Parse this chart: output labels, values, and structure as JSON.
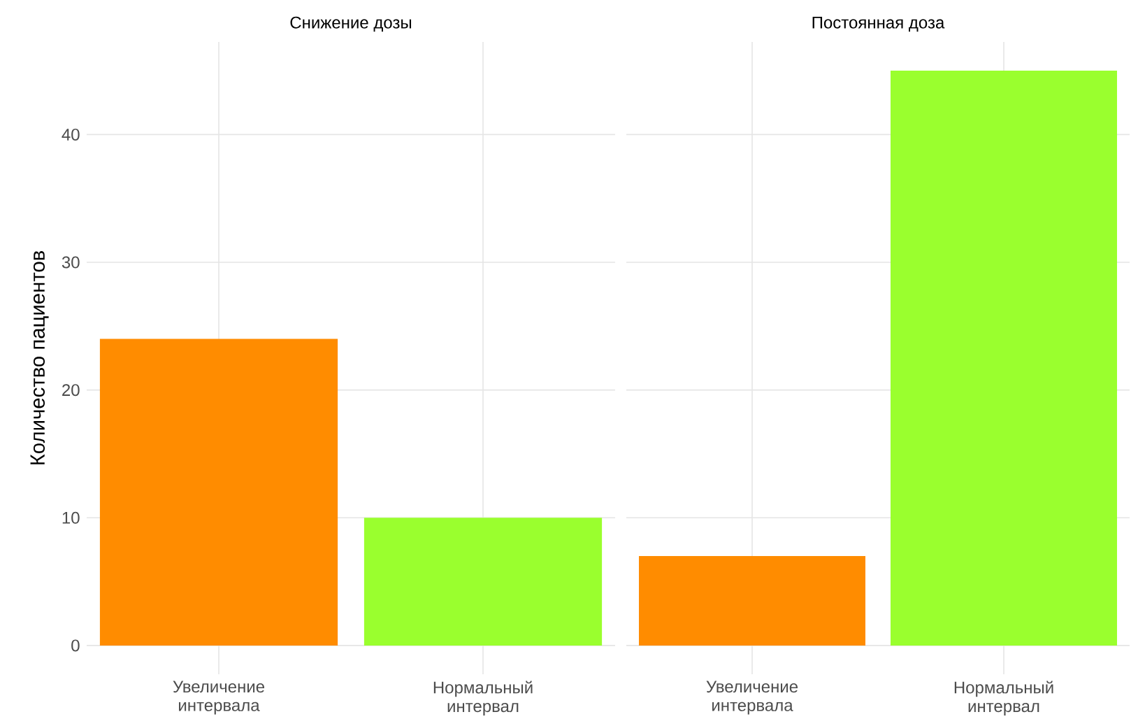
{
  "chart_data": [
    {
      "type": "bar",
      "title": "Снижение дозы",
      "ylabel": "Количество пациентов",
      "categories": [
        "Увеличение интервала",
        "Нормальный интервал"
      ],
      "values": [
        24,
        10
      ],
      "colors": [
        "#ff8c00",
        "#9aff2e"
      ],
      "ylim": [
        -2.25,
        47.25
      ],
      "yticks": [
        0,
        10,
        20,
        30,
        40
      ],
      "grid": true
    },
    {
      "type": "bar",
      "title": "Постоянная доза",
      "categories": [
        "Увеличение интервала",
        "Нормальный интервал"
      ],
      "values": [
        7,
        45
      ],
      "colors": [
        "#ff8c00",
        "#9aff2e"
      ],
      "ylim": [
        -2.25,
        47.25
      ],
      "yticks": [
        0,
        10,
        20,
        30,
        40
      ],
      "grid": true,
      "tick_labels": "x"
    }
  ]
}
